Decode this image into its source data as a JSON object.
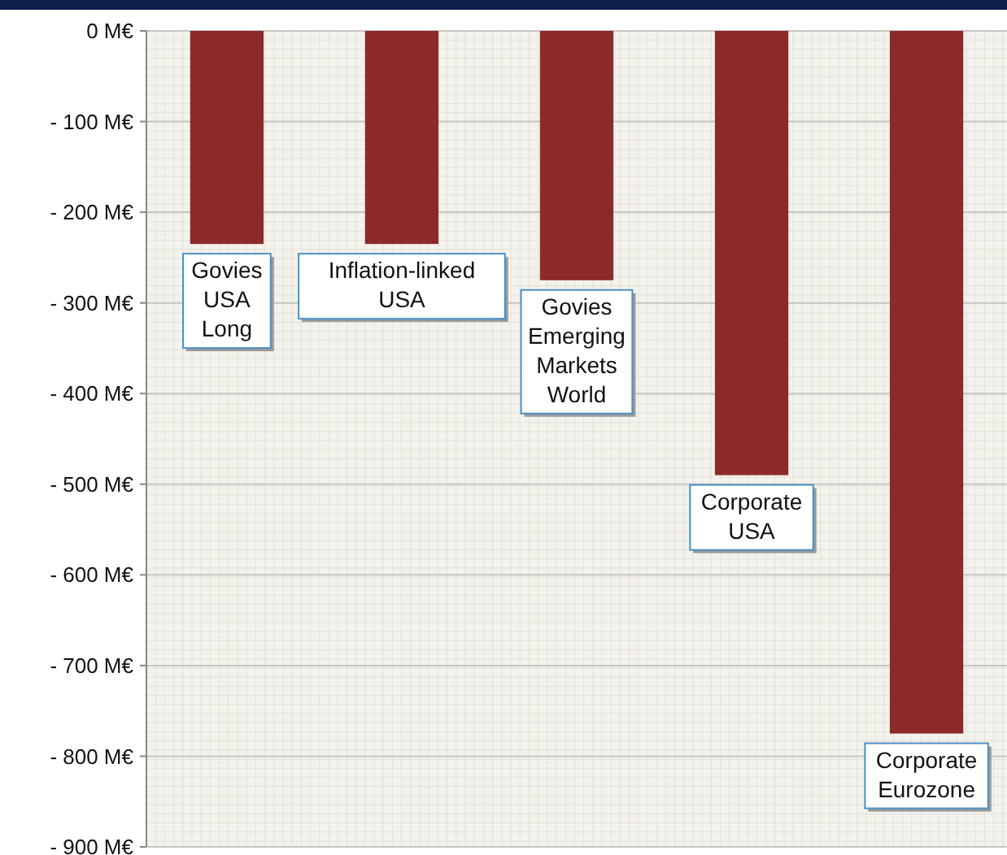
{
  "chart_data": {
    "type": "bar",
    "categories": [
      "Govies USA Long",
      "Inflation-linked USA",
      "Govies Emerging Markets World",
      "Corporate USA",
      "Corporate Eurozone"
    ],
    "values": [
      -235,
      -235,
      -275,
      -490,
      -775
    ],
    "color": "#8c2a2a",
    "ylim": [
      -900,
      0
    ],
    "yticks": [
      {
        "value": 0,
        "label": "0 M€"
      },
      {
        "value": -100,
        "label": "- 100 M€"
      },
      {
        "value": -200,
        "label": "- 200 M€"
      },
      {
        "value": -300,
        "label": "- 300 M€"
      },
      {
        "value": -400,
        "label": "- 400 M€"
      },
      {
        "value": -500,
        "label": "- 500 M€"
      },
      {
        "value": -600,
        "label": "- 600 M€"
      },
      {
        "value": -700,
        "label": "- 700 M€"
      },
      {
        "value": -800,
        "label": "- 800 M€"
      },
      {
        "value": -900,
        "label": "- 900 M€"
      }
    ],
    "grid": true
  }
}
